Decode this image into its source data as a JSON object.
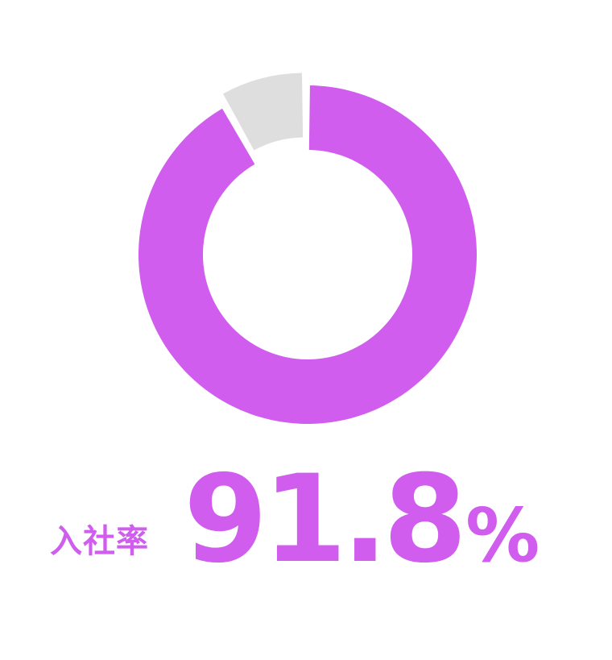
{
  "chart_data": {
    "type": "pie",
    "variant": "donut",
    "slices": [
      {
        "label": "入社",
        "value": 91.8,
        "color": "#d05ded"
      },
      {
        "label": "",
        "value": 8.2,
        "color": "#dedede"
      }
    ]
  },
  "stat": {
    "label": "入社率",
    "value": "91.8",
    "unit": "%"
  }
}
